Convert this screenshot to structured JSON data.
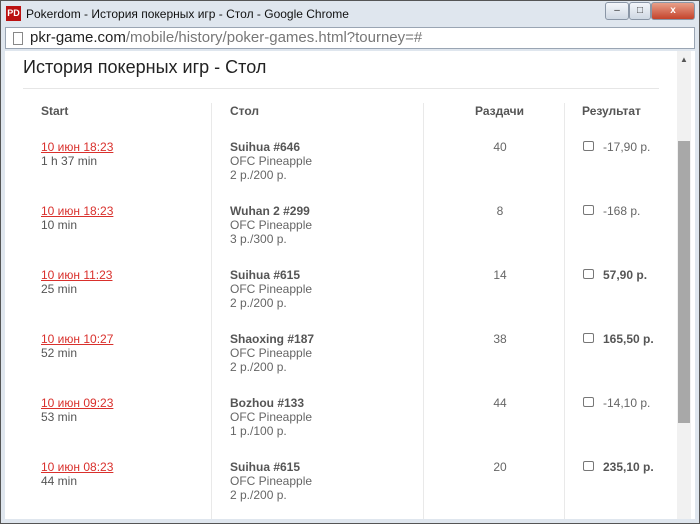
{
  "window": {
    "title": "Pokerdom - История покерных игр - Стол - Google Chrome",
    "logo": "PD"
  },
  "address": {
    "domain": "pkr-game.com",
    "path": "/mobile/history/poker-games.html?tourney=#"
  },
  "page": {
    "title": "История покерных игр - Стол"
  },
  "columns": [
    "Start",
    "Стол",
    "Раздачи",
    "Результат"
  ],
  "rows": [
    {
      "date": "10 июн 18:23",
      "duration": "1 h 37 min",
      "table": "Suihua #646",
      "game": "OFC Pineapple",
      "stakes": "2 p./200 p.",
      "hands": "40",
      "result": "-17,90 р.",
      "positive": false
    },
    {
      "date": "10 июн 18:23",
      "duration": "10 min",
      "table": "Wuhan 2 #299",
      "game": "OFC Pineapple",
      "stakes": "3 p./300 p.",
      "hands": "8",
      "result": "-168 р.",
      "positive": false
    },
    {
      "date": "10 июн 11:23",
      "duration": "25 min",
      "table": "Suihua #615",
      "game": "OFC Pineapple",
      "stakes": "2 p./200 p.",
      "hands": "14",
      "result": "57,90 р.",
      "positive": true
    },
    {
      "date": "10 июн 10:27",
      "duration": "52 min",
      "table": "Shaoxing #187",
      "game": "OFC Pineapple",
      "stakes": "2 p./200 p.",
      "hands": "38",
      "result": "165,50 р.",
      "positive": true
    },
    {
      "date": "10 июн 09:23",
      "duration": "53 min",
      "table": "Bozhou #133",
      "game": "OFC Pineapple",
      "stakes": "1 p./100 p.",
      "hands": "44",
      "result": "-14,10 р.",
      "positive": false
    },
    {
      "date": "10 июн 08:23",
      "duration": "44 min",
      "table": "Suihua #615",
      "game": "OFC Pineapple",
      "stakes": "2 p./200 p.",
      "hands": "20",
      "result": "235,10 р.",
      "positive": true
    }
  ]
}
